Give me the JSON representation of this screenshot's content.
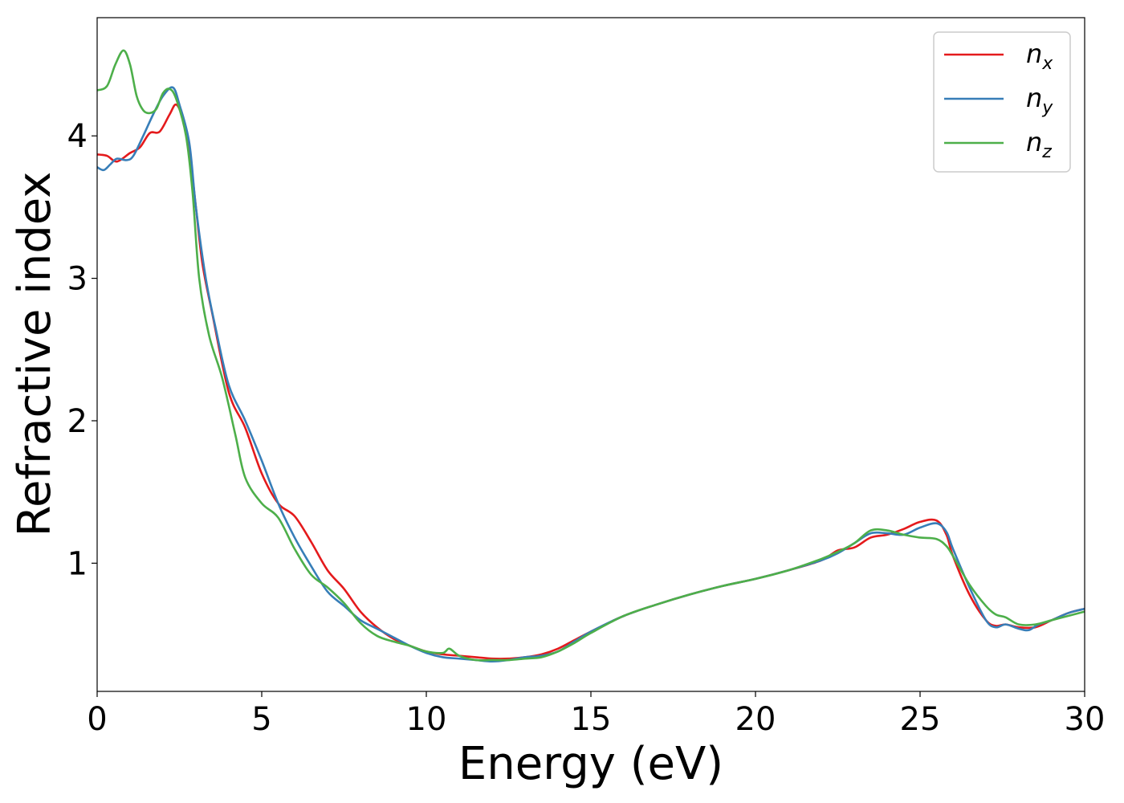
{
  "chart_data": {
    "type": "line",
    "xlabel": "Energy (eV)",
    "ylabel": "Refractive index",
    "xlim": [
      0,
      30
    ],
    "ylim": [
      0.1,
      4.83
    ],
    "xticks": [
      "0",
      "5",
      "10",
      "15",
      "20",
      "25",
      "30"
    ],
    "yticks": [
      "1",
      "2",
      "3",
      "4"
    ],
    "grid": false,
    "legend_position": "top-right",
    "series": [
      {
        "name": "n",
        "subscript": "x",
        "color": "#e41a1c",
        "points": [
          [
            0,
            3.87
          ],
          [
            0.3,
            3.86
          ],
          [
            0.6,
            3.82
          ],
          [
            1.0,
            3.88
          ],
          [
            1.3,
            3.92
          ],
          [
            1.6,
            4.02
          ],
          [
            1.9,
            4.03
          ],
          [
            2.2,
            4.15
          ],
          [
            2.4,
            4.22
          ],
          [
            2.6,
            4.12
          ],
          [
            2.8,
            3.9
          ],
          [
            3.0,
            3.5
          ],
          [
            3.2,
            3.1
          ],
          [
            3.5,
            2.75
          ],
          [
            4.0,
            2.2
          ],
          [
            4.5,
            1.95
          ],
          [
            5.0,
            1.63
          ],
          [
            5.5,
            1.42
          ],
          [
            6.0,
            1.33
          ],
          [
            6.5,
            1.15
          ],
          [
            7.0,
            0.95
          ],
          [
            7.5,
            0.82
          ],
          [
            8.0,
            0.66
          ],
          [
            8.5,
            0.55
          ],
          [
            9.0,
            0.47
          ],
          [
            9.5,
            0.42
          ],
          [
            10.0,
            0.38
          ],
          [
            10.5,
            0.36
          ],
          [
            11.0,
            0.35
          ],
          [
            11.5,
            0.34
          ],
          [
            12.0,
            0.33
          ],
          [
            12.5,
            0.33
          ],
          [
            13.0,
            0.34
          ],
          [
            13.5,
            0.36
          ],
          [
            14.0,
            0.4
          ],
          [
            14.5,
            0.46
          ],
          [
            15.0,
            0.52
          ],
          [
            16.0,
            0.63
          ],
          [
            17.0,
            0.71
          ],
          [
            18.0,
            0.78
          ],
          [
            19.0,
            0.84
          ],
          [
            20.0,
            0.89
          ],
          [
            21.0,
            0.95
          ],
          [
            22.0,
            1.02
          ],
          [
            22.5,
            1.09
          ],
          [
            23.0,
            1.11
          ],
          [
            23.5,
            1.18
          ],
          [
            24.0,
            1.2
          ],
          [
            24.5,
            1.24
          ],
          [
            25.0,
            1.29
          ],
          [
            25.5,
            1.3
          ],
          [
            25.8,
            1.2
          ],
          [
            26.0,
            1.05
          ],
          [
            26.5,
            0.78
          ],
          [
            27.0,
            0.6
          ],
          [
            27.3,
            0.56
          ],
          [
            27.6,
            0.57
          ],
          [
            28.0,
            0.55
          ],
          [
            28.5,
            0.55
          ],
          [
            29.0,
            0.6
          ],
          [
            29.5,
            0.65
          ],
          [
            30.0,
            0.68
          ]
        ]
      },
      {
        "name": "n",
        "subscript": "y",
        "color": "#377eb8",
        "points": [
          [
            0,
            3.78
          ],
          [
            0.2,
            3.76
          ],
          [
            0.4,
            3.8
          ],
          [
            0.6,
            3.84
          ],
          [
            0.9,
            3.83
          ],
          [
            1.1,
            3.86
          ],
          [
            1.4,
            4.0
          ],
          [
            1.7,
            4.15
          ],
          [
            2.0,
            4.28
          ],
          [
            2.3,
            4.34
          ],
          [
            2.5,
            4.22
          ],
          [
            2.8,
            3.95
          ],
          [
            3.0,
            3.5
          ],
          [
            3.3,
            3.0
          ],
          [
            3.6,
            2.65
          ],
          [
            4.0,
            2.25
          ],
          [
            4.5,
            2.0
          ],
          [
            5.0,
            1.72
          ],
          [
            5.5,
            1.42
          ],
          [
            6.0,
            1.18
          ],
          [
            6.5,
            0.98
          ],
          [
            7.0,
            0.8
          ],
          [
            7.5,
            0.7
          ],
          [
            8.0,
            0.6
          ],
          [
            8.5,
            0.54
          ],
          [
            9.0,
            0.48
          ],
          [
            9.5,
            0.42
          ],
          [
            10.0,
            0.37
          ],
          [
            10.5,
            0.34
          ],
          [
            11.0,
            0.33
          ],
          [
            11.5,
            0.32
          ],
          [
            12.0,
            0.31
          ],
          [
            12.5,
            0.32
          ],
          [
            13.0,
            0.34
          ],
          [
            13.5,
            0.35
          ],
          [
            14.0,
            0.38
          ],
          [
            14.5,
            0.45
          ],
          [
            15.0,
            0.52
          ],
          [
            16.0,
            0.63
          ],
          [
            17.0,
            0.71
          ],
          [
            18.0,
            0.78
          ],
          [
            19.0,
            0.84
          ],
          [
            20.0,
            0.89
          ],
          [
            21.0,
            0.95
          ],
          [
            22.0,
            1.02
          ],
          [
            22.5,
            1.07
          ],
          [
            23.0,
            1.14
          ],
          [
            23.5,
            1.21
          ],
          [
            24.0,
            1.21
          ],
          [
            24.5,
            1.2
          ],
          [
            25.0,
            1.25
          ],
          [
            25.5,
            1.28
          ],
          [
            25.8,
            1.22
          ],
          [
            26.0,
            1.1
          ],
          [
            26.5,
            0.83
          ],
          [
            27.0,
            0.6
          ],
          [
            27.3,
            0.55
          ],
          [
            27.6,
            0.57
          ],
          [
            28.0,
            0.54
          ],
          [
            28.3,
            0.53
          ],
          [
            28.6,
            0.57
          ],
          [
            29.0,
            0.6
          ],
          [
            29.5,
            0.65
          ],
          [
            30.0,
            0.68
          ]
        ]
      },
      {
        "name": "n",
        "subscript": "z",
        "color": "#4daf4a",
        "points": [
          [
            0,
            4.32
          ],
          [
            0.3,
            4.35
          ],
          [
            0.55,
            4.5
          ],
          [
            0.8,
            4.6
          ],
          [
            1.0,
            4.5
          ],
          [
            1.2,
            4.28
          ],
          [
            1.4,
            4.18
          ],
          [
            1.6,
            4.16
          ],
          [
            1.8,
            4.19
          ],
          [
            2.0,
            4.3
          ],
          [
            2.2,
            4.33
          ],
          [
            2.4,
            4.26
          ],
          [
            2.7,
            4.0
          ],
          [
            2.9,
            3.6
          ],
          [
            3.1,
            3.0
          ],
          [
            3.4,
            2.6
          ],
          [
            3.8,
            2.3
          ],
          [
            4.2,
            1.9
          ],
          [
            4.5,
            1.6
          ],
          [
            5.0,
            1.42
          ],
          [
            5.5,
            1.32
          ],
          [
            6.0,
            1.1
          ],
          [
            6.5,
            0.92
          ],
          [
            7.0,
            0.83
          ],
          [
            7.5,
            0.72
          ],
          [
            8.0,
            0.58
          ],
          [
            8.5,
            0.49
          ],
          [
            9.0,
            0.45
          ],
          [
            9.5,
            0.42
          ],
          [
            10.0,
            0.38
          ],
          [
            10.5,
            0.37
          ],
          [
            10.7,
            0.4
          ],
          [
            11.0,
            0.35
          ],
          [
            11.5,
            0.32
          ],
          [
            12.0,
            0.32
          ],
          [
            12.5,
            0.32
          ],
          [
            13.0,
            0.33
          ],
          [
            13.5,
            0.34
          ],
          [
            14.0,
            0.38
          ],
          [
            14.5,
            0.44
          ],
          [
            15.0,
            0.51
          ],
          [
            16.0,
            0.63
          ],
          [
            17.0,
            0.71
          ],
          [
            18.0,
            0.78
          ],
          [
            19.0,
            0.84
          ],
          [
            20.0,
            0.89
          ],
          [
            21.0,
            0.95
          ],
          [
            22.0,
            1.03
          ],
          [
            22.5,
            1.08
          ],
          [
            23.0,
            1.14
          ],
          [
            23.5,
            1.23
          ],
          [
            24.0,
            1.23
          ],
          [
            24.5,
            1.2
          ],
          [
            25.0,
            1.18
          ],
          [
            25.5,
            1.17
          ],
          [
            25.8,
            1.12
          ],
          [
            26.0,
            1.05
          ],
          [
            26.5,
            0.85
          ],
          [
            27.0,
            0.7
          ],
          [
            27.3,
            0.64
          ],
          [
            27.6,
            0.62
          ],
          [
            28.0,
            0.57
          ],
          [
            28.5,
            0.57
          ],
          [
            29.0,
            0.6
          ],
          [
            29.5,
            0.63
          ],
          [
            30.0,
            0.66
          ]
        ]
      }
    ]
  }
}
